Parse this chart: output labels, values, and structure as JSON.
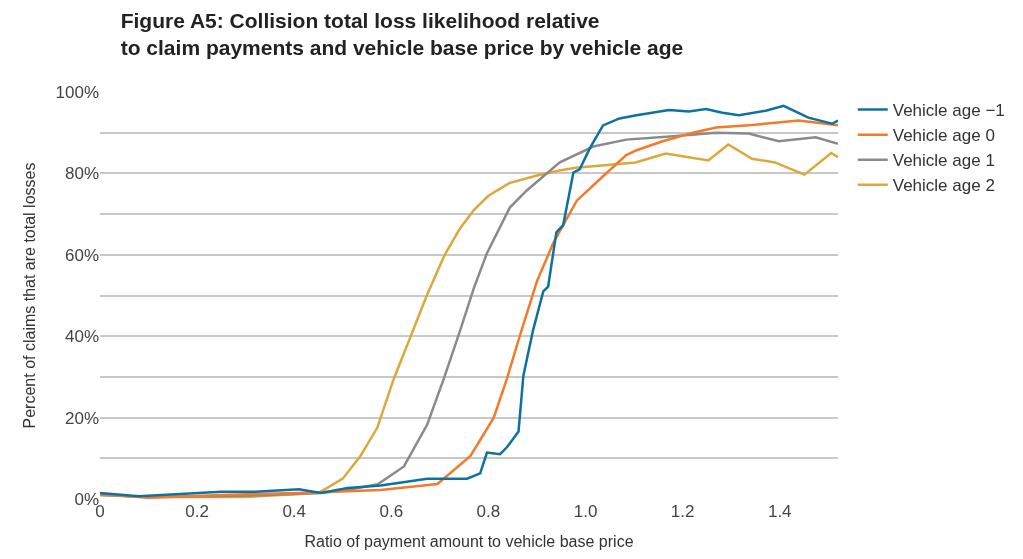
{
  "chart_data": {
    "type": "line",
    "title": "Figure A5: Collision total loss likelihood relative\nto claim payments and vehicle base price by vehicle age",
    "xlabel": "Ratio of payment amount to vehicle base price",
    "ylabel": "Percent of claims that are total losses",
    "xlim": [
      0,
      1.52
    ],
    "xticks": [
      0,
      0.2,
      0.4,
      0.6,
      0.8,
      {
        "value": 1.0,
        "label": "1.0"
      },
      1.2,
      1.4
    ],
    "ylim": [
      0,
      100
    ],
    "yticks": [
      {
        "value": 0,
        "label": "0%"
      },
      {
        "value": 10,
        "label": null
      },
      {
        "value": 20,
        "label": "20%"
      },
      {
        "value": 30,
        "label": null
      },
      {
        "value": 40,
        "label": "40%"
      },
      {
        "value": 50,
        "label": null
      },
      {
        "value": 60,
        "label": "60%"
      },
      {
        "value": 70,
        "label": null
      },
      {
        "value": 80,
        "label": "80%"
      },
      {
        "value": 90,
        "label": null
      },
      {
        "value": 100,
        "label": "100%"
      }
    ],
    "grid": "y",
    "legend": "top right",
    "marker": "none",
    "line_style": "solid",
    "series": [
      {
        "name": "Vehicle age −1",
        "color": "#0e72a0",
        "x": [
          0.0,
          0.08,
          0.25,
          0.32,
          0.41,
          0.455,
          0.51,
          0.578,
          0.674,
          0.756,
          0.783,
          0.797,
          0.824,
          0.838,
          0.862,
          0.872,
          0.892,
          0.913,
          0.923,
          0.94,
          0.954,
          0.975,
          0.988,
          1.009,
          1.036,
          1.07,
          1.105,
          1.172,
          1.213,
          1.248,
          1.282,
          1.316,
          1.371,
          1.408,
          1.459,
          1.508,
          1.52
        ],
        "values": [
          1.5,
          0.7,
          1.8,
          1.8,
          2.4,
          1.5,
          2.7,
          3.3,
          5,
          5,
          6.3,
          11.4,
          11,
          12.7,
          16.6,
          30.3,
          41.5,
          51,
          52.2,
          65.5,
          67.3,
          80.2,
          81,
          86.2,
          91.8,
          93.5,
          94.3,
          95.6,
          95.2,
          95.8,
          94.9,
          94.3,
          95.4,
          96.6,
          93.7,
          92.2,
          93
        ]
      },
      {
        "name": "Vehicle age 0",
        "color": "#f47a2a",
        "x": [
          0.0,
          0.1,
          0.25,
          0.41,
          0.578,
          0.695,
          0.763,
          0.811,
          0.838,
          0.866,
          0.9,
          0.934,
          0.982,
          1.036,
          1.084,
          1.105,
          1.159,
          1.221,
          1.269,
          1.336,
          1.439,
          1.52
        ],
        "values": [
          1.2,
          0.3,
          1,
          1.5,
          2.2,
          3.7,
          10.6,
          20,
          29.5,
          40.6,
          53.5,
          63,
          73.3,
          79.3,
          84.5,
          85.7,
          87.9,
          90,
          91.3,
          91.8,
          93,
          91.8
        ]
      },
      {
        "name": "Vehicle age 1",
        "color": "#8a8a8a",
        "x": [
          0.0,
          0.1,
          0.3,
          0.45,
          0.5,
          0.572,
          0.626,
          0.674,
          0.708,
          0.742,
          0.77,
          0.797,
          0.844,
          0.879,
          0.947,
          1.016,
          1.084,
          1.187,
          1.269,
          1.336,
          1.398,
          1.474,
          1.52
        ],
        "values": [
          1,
          0.5,
          0.8,
          1.5,
          2,
          3.6,
          8,
          18.3,
          29.5,
          41.5,
          51.8,
          60.4,
          71.6,
          75.8,
          82.7,
          86.6,
          88.3,
          89.2,
          90,
          89.8,
          87.9,
          88.9,
          87.3
        ]
      },
      {
        "name": "Vehicle age 2",
        "color": "#dca83c",
        "x": [
          0.0,
          0.1,
          0.3,
          0.45,
          0.469,
          0.5,
          0.536,
          0.571,
          0.605,
          0.64,
          0.673,
          0.71,
          0.741,
          0.77,
          0.8,
          0.843,
          0.9,
          0.946,
          0.98,
          1.103,
          1.165,
          1.253,
          1.294,
          1.343,
          1.39,
          1.451,
          1.506,
          1.52
        ],
        "values": [
          1,
          0.5,
          0.5,
          1.5,
          2.8,
          5,
          10.5,
          17.5,
          29.5,
          40,
          50,
          60,
          66.4,
          71,
          74.5,
          77.6,
          79.5,
          80.7,
          81.4,
          82.7,
          84.9,
          83.2,
          87.1,
          83.6,
          82.7,
          79.7,
          85,
          84
        ]
      }
    ]
  }
}
